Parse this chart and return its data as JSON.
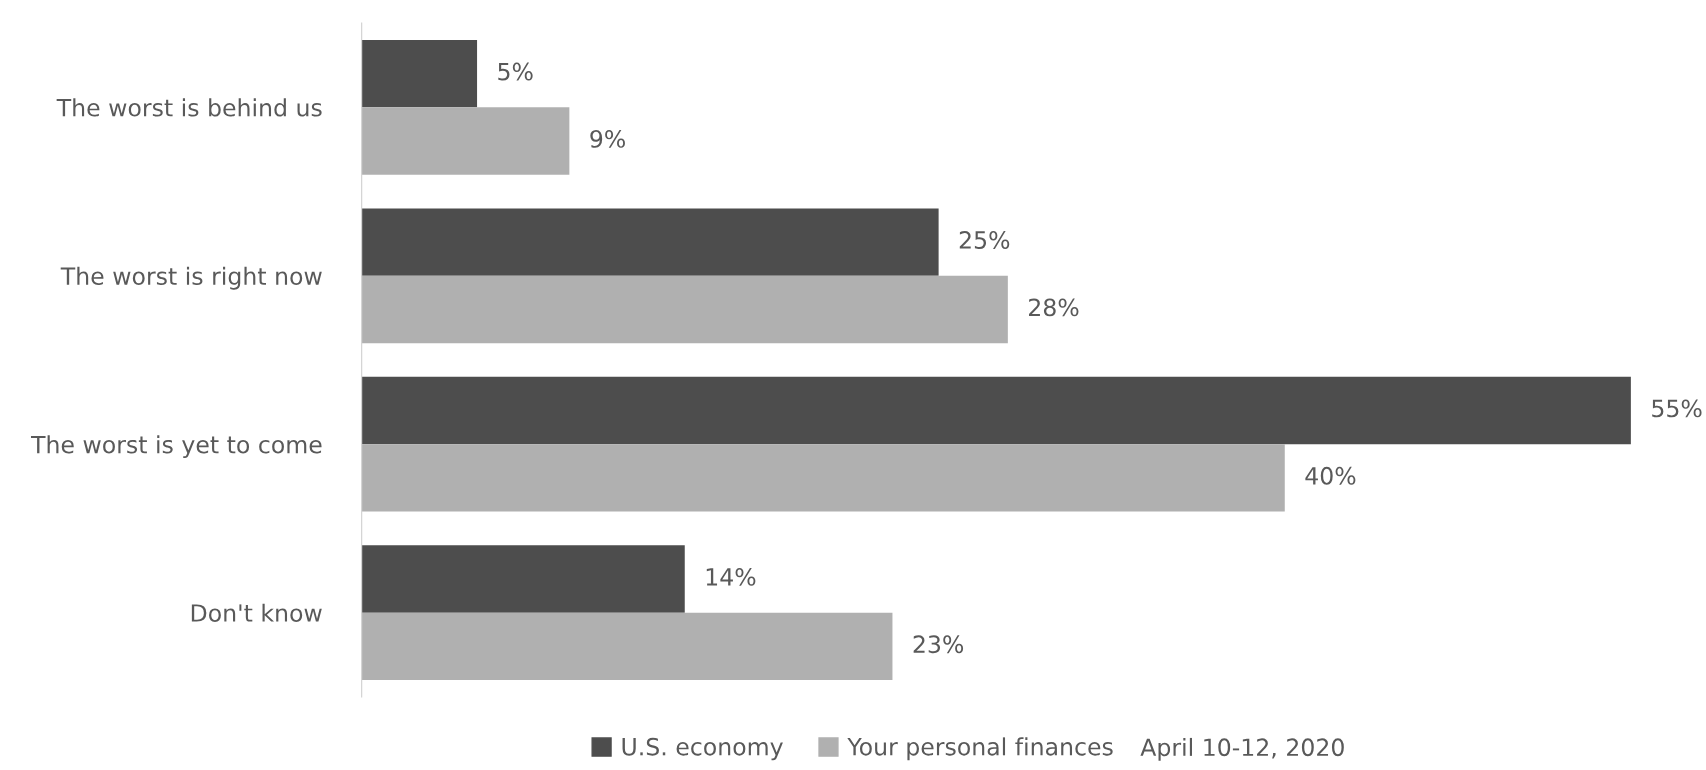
{
  "chart_data": {
    "type": "bar",
    "orientation": "horizontal",
    "categories": [
      "The worst is behind us",
      "The worst is right now",
      "The worst is yet to come",
      "Don't know"
    ],
    "series": [
      {
        "name": "U.S. economy",
        "color": "#4d4d4d",
        "values": [
          5,
          25,
          55,
          14
        ],
        "value_labels": [
          "5%",
          "25%",
          "55%",
          "14%"
        ]
      },
      {
        "name": "Your personal finances",
        "color": "#b0b0b0",
        "values": [
          9,
          28,
          40,
          23
        ],
        "value_labels": [
          "9%",
          "28%",
          "40%",
          "23%"
        ]
      }
    ],
    "xlim": [
      0,
      55
    ],
    "grid": false,
    "legend": "bottom",
    "annotations": [
      "April 10-12, 2020"
    ]
  }
}
